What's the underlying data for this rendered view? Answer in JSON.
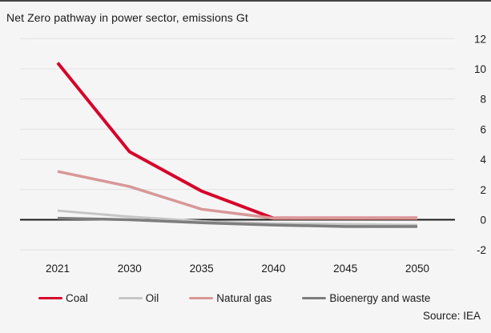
{
  "title": "Net Zero pathway in power sector, emissions Gt",
  "source": "Source: IEA",
  "colors": {
    "background": "#f5f5f5",
    "gridline": "#e2e2e2",
    "zero_line": "#1a1a1a",
    "text": "#1a1a1a",
    "coal": "#d6042a",
    "oil": "#c6c6c6",
    "natural_gas": "#d89898",
    "bioenergy": "#7d7d7d"
  },
  "chart_data": {
    "type": "line",
    "title": "Net Zero pathway in power sector, emissions Gt",
    "categories": [
      "2021",
      "2030",
      "2035",
      "2040",
      "2045",
      "2050"
    ],
    "series": [
      {
        "name": "Coal",
        "color": "#d6042a",
        "values": [
          10.4,
          4.5,
          1.9,
          0.1,
          0.1,
          0.1
        ]
      },
      {
        "name": "Oil",
        "color": "#c6c6c6",
        "values": [
          0.6,
          0.2,
          -0.1,
          -0.25,
          -0.3,
          -0.35
        ]
      },
      {
        "name": "Natural gas",
        "color": "#d89898",
        "values": [
          3.2,
          2.2,
          0.7,
          0.1,
          0.1,
          0.1
        ]
      },
      {
        "name": "Bioenergy and waste",
        "color": "#7d7d7d",
        "values": [
          0.1,
          0.0,
          -0.2,
          -0.35,
          -0.45,
          -0.45
        ]
      }
    ],
    "xlabel": "",
    "ylabel": "emissions Gt",
    "ylim": [
      -2,
      12
    ],
    "yticks": [
      12,
      10,
      8,
      6,
      4,
      2,
      0,
      -2
    ],
    "y_axis_side": "right",
    "grid": true,
    "legend_position": "bottom",
    "source": "Source: IEA"
  }
}
